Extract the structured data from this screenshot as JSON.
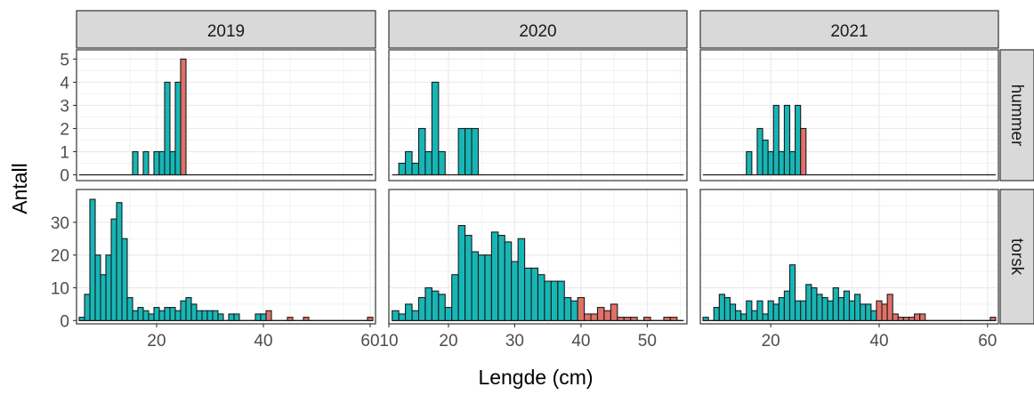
{
  "colors": {
    "teal": "#17B6B6",
    "red": "#E07169",
    "strip_bg": "#D9D9D9",
    "grid": "#EBEBEB",
    "border": "#333333",
    "text": "#4D4D4D"
  },
  "chart_data": {
    "type": "bar",
    "subtype": "faceted-histogram",
    "xlabel": "Lengde (cm)",
    "ylabel": "Antall",
    "column_strips": [
      "2019",
      "2020",
      "2021"
    ],
    "row_strips": [
      "hummer",
      "torsk"
    ],
    "fill_legend": "none",
    "x_scales": {
      "2019": {
        "lim": [
          5,
          61
        ],
        "ticks": [
          20,
          40,
          60
        ]
      },
      "2020": {
        "lim": [
          11,
          56
        ],
        "ticks": [
          10,
          20,
          30,
          40,
          50
        ]
      },
      "2021": {
        "lim": [
          7,
          62
        ],
        "ticks": [
          20,
          40,
          60
        ]
      }
    },
    "y_scales": {
      "hummer": {
        "lim": [
          -0.25,
          5.4
        ],
        "ticks": [
          0,
          1,
          2,
          3,
          4,
          5
        ]
      },
      "torsk": {
        "lim": [
          -1,
          40
        ],
        "ticks": [
          0,
          10,
          20,
          30
        ]
      }
    },
    "panels": [
      {
        "year": "2019",
        "species": "hummer",
        "range": [
          6,
          60
        ],
        "bars": [
          [
            16,
            1,
            "a"
          ],
          [
            18,
            1,
            "a"
          ],
          [
            20,
            1,
            "a"
          ],
          [
            21,
            1,
            "a"
          ],
          [
            22,
            4,
            "a"
          ],
          [
            23,
            1,
            "a"
          ],
          [
            24,
            4,
            "a"
          ],
          [
            25,
            5,
            "b"
          ]
        ]
      },
      {
        "year": "2020",
        "species": "hummer",
        "range": [
          12,
          55
        ],
        "bars": [
          [
            13,
            0.5,
            "a"
          ],
          [
            14,
            1,
            "a"
          ],
          [
            15,
            0.5,
            "a"
          ],
          [
            16,
            2,
            "a"
          ],
          [
            17,
            1,
            "a"
          ],
          [
            18,
            4,
            "a"
          ],
          [
            19,
            1,
            "a"
          ],
          [
            22,
            2,
            "a"
          ],
          [
            23,
            2,
            "a"
          ],
          [
            24,
            2,
            "a"
          ]
        ]
      },
      {
        "year": "2021",
        "species": "hummer",
        "range": [
          8,
          61
        ],
        "bars": [
          [
            16,
            1,
            "a"
          ],
          [
            18,
            2,
            "a"
          ],
          [
            19,
            1.5,
            "a"
          ],
          [
            20,
            1,
            "a"
          ],
          [
            21,
            3,
            "a"
          ],
          [
            22,
            1,
            "a"
          ],
          [
            23,
            3,
            "a"
          ],
          [
            24,
            1,
            "a"
          ],
          [
            25,
            3,
            "a"
          ],
          [
            26,
            2,
            "b"
          ]
        ]
      },
      {
        "year": "2019",
        "species": "torsk",
        "range": [
          6,
          60
        ],
        "bars": [
          [
            6,
            1,
            "a"
          ],
          [
            7,
            8,
            "a"
          ],
          [
            8,
            37,
            "a"
          ],
          [
            9,
            20,
            "a"
          ],
          [
            10,
            14,
            "a"
          ],
          [
            11,
            20,
            "a"
          ],
          [
            12,
            31,
            "a"
          ],
          [
            13,
            36,
            "a"
          ],
          [
            14,
            25,
            "a"
          ],
          [
            15,
            7,
            "a"
          ],
          [
            16,
            3,
            "a"
          ],
          [
            17,
            4,
            "a"
          ],
          [
            18,
            3,
            "a"
          ],
          [
            19,
            2,
            "a"
          ],
          [
            20,
            4,
            "a"
          ],
          [
            21,
            3,
            "a"
          ],
          [
            22,
            4,
            "a"
          ],
          [
            23,
            4,
            "a"
          ],
          [
            24,
            3,
            "a"
          ],
          [
            25,
            6,
            "a"
          ],
          [
            26,
            7,
            "a"
          ],
          [
            27,
            5,
            "a"
          ],
          [
            28,
            3,
            "a"
          ],
          [
            29,
            3,
            "a"
          ],
          [
            30,
            3,
            "a"
          ],
          [
            31,
            3,
            "a"
          ],
          [
            32,
            2,
            "a"
          ],
          [
            34,
            2,
            "a"
          ],
          [
            35,
            2,
            "a"
          ],
          [
            39,
            2,
            "a"
          ],
          [
            40,
            2,
            "a"
          ],
          [
            41,
            3,
            "b"
          ],
          [
            45,
            1,
            "b"
          ],
          [
            48,
            1,
            "b"
          ],
          [
            60,
            1,
            "b"
          ]
        ]
      },
      {
        "year": "2020",
        "species": "torsk",
        "range": [
          12,
          55
        ],
        "bars": [
          [
            12,
            3,
            "a"
          ],
          [
            13,
            2,
            "a"
          ],
          [
            14,
            5,
            "a"
          ],
          [
            15,
            3,
            "a"
          ],
          [
            16,
            7,
            "a"
          ],
          [
            17,
            10,
            "a"
          ],
          [
            18,
            9,
            "a"
          ],
          [
            19,
            8,
            "a"
          ],
          [
            20,
            4,
            "a"
          ],
          [
            21,
            14,
            "a"
          ],
          [
            22,
            29,
            "a"
          ],
          [
            23,
            26,
            "a"
          ],
          [
            24,
            21,
            "a"
          ],
          [
            25,
            20,
            "a"
          ],
          [
            26,
            20,
            "a"
          ],
          [
            27,
            27,
            "a"
          ],
          [
            28,
            26,
            "a"
          ],
          [
            29,
            24,
            "a"
          ],
          [
            30,
            18,
            "a"
          ],
          [
            31,
            25,
            "a"
          ],
          [
            32,
            16,
            "a"
          ],
          [
            33,
            16,
            "a"
          ],
          [
            34,
            14,
            "a"
          ],
          [
            35,
            12,
            "a"
          ],
          [
            36,
            12,
            "a"
          ],
          [
            37,
            12,
            "a"
          ],
          [
            38,
            7,
            "a"
          ],
          [
            39,
            6,
            "a"
          ],
          [
            40,
            7,
            "b"
          ],
          [
            41,
            2,
            "b"
          ],
          [
            42,
            2,
            "b"
          ],
          [
            43,
            4,
            "b"
          ],
          [
            44,
            3,
            "b"
          ],
          [
            45,
            5,
            "b"
          ],
          [
            46,
            1,
            "b"
          ],
          [
            47,
            1,
            "b"
          ],
          [
            48,
            1,
            "b"
          ],
          [
            50,
            1,
            "b"
          ],
          [
            53,
            1,
            "b"
          ],
          [
            54,
            1,
            "b"
          ]
        ]
      },
      {
        "year": "2021",
        "species": "torsk",
        "range": [
          8,
          61
        ],
        "bars": [
          [
            8,
            1,
            "a"
          ],
          [
            10,
            4,
            "a"
          ],
          [
            11,
            8,
            "a"
          ],
          [
            12,
            7,
            "a"
          ],
          [
            13,
            5,
            "a"
          ],
          [
            14,
            3,
            "a"
          ],
          [
            15,
            2,
            "a"
          ],
          [
            16,
            6,
            "a"
          ],
          [
            17,
            3,
            "a"
          ],
          [
            18,
            6,
            "a"
          ],
          [
            19,
            2,
            "a"
          ],
          [
            20,
            6,
            "a"
          ],
          [
            21,
            5,
            "a"
          ],
          [
            22,
            7,
            "a"
          ],
          [
            23,
            9,
            "a"
          ],
          [
            24,
            17,
            "a"
          ],
          [
            25,
            6,
            "a"
          ],
          [
            26,
            6,
            "a"
          ],
          [
            27,
            11,
            "a"
          ],
          [
            28,
            10,
            "a"
          ],
          [
            29,
            8,
            "a"
          ],
          [
            30,
            7,
            "a"
          ],
          [
            31,
            6,
            "a"
          ],
          [
            32,
            10,
            "a"
          ],
          [
            33,
            7,
            "a"
          ],
          [
            34,
            9,
            "a"
          ],
          [
            35,
            6,
            "a"
          ],
          [
            36,
            8,
            "a"
          ],
          [
            37,
            5,
            "a"
          ],
          [
            38,
            5,
            "a"
          ],
          [
            39,
            3,
            "a"
          ],
          [
            40,
            6,
            "b"
          ],
          [
            41,
            5,
            "b"
          ],
          [
            42,
            8,
            "b"
          ],
          [
            43,
            2,
            "b"
          ],
          [
            44,
            1,
            "b"
          ],
          [
            45,
            1,
            "b"
          ],
          [
            46,
            1,
            "b"
          ],
          [
            47,
            2,
            "b"
          ],
          [
            48,
            2,
            "b"
          ],
          [
            61,
            1,
            "b"
          ]
        ]
      }
    ]
  }
}
